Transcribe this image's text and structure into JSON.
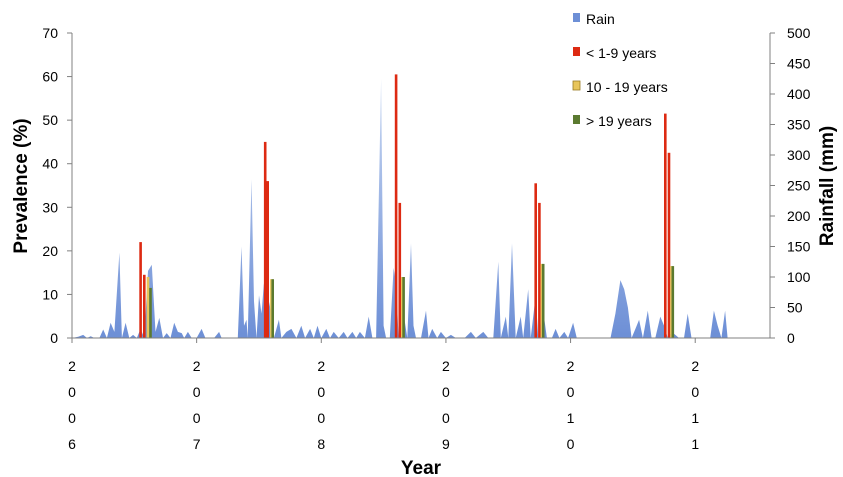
{
  "chart_data": {
    "type": "bar",
    "title": "",
    "xlabel": "Year",
    "ylabel_left": "Prevalence (%)",
    "ylabel_right": "Rainfall (mm)",
    "ylim_left": [
      0,
      70
    ],
    "ylim_right": [
      0,
      500
    ],
    "yticks_left": [
      0,
      10,
      20,
      30,
      40,
      50,
      60,
      70
    ],
    "yticks_right": [
      0,
      50,
      100,
      150,
      200,
      250,
      300,
      350,
      400,
      450,
      500
    ],
    "xlim": [
      2006.0,
      2011.6
    ],
    "year_labels": [
      {
        "year": 2006,
        "digits": [
          "2",
          "0",
          "0",
          "6"
        ]
      },
      {
        "year": 2007,
        "digits": [
          "2",
          "0",
          "0",
          "7"
        ]
      },
      {
        "year": 2008,
        "digits": [
          "2",
          "0",
          "0",
          "8"
        ]
      },
      {
        "year": 2009,
        "digits": [
          "2",
          "0",
          "0",
          "9"
        ]
      },
      {
        "year": 2010,
        "digits": [
          "2",
          "0",
          "1",
          "0"
        ]
      },
      {
        "year": 2011,
        "digits": [
          "2",
          "0",
          "1",
          "1"
        ]
      }
    ],
    "legend_position": "top-right",
    "series": [
      {
        "name": "Rain",
        "kind": "area",
        "axis": "right",
        "color": "#6d8fd6",
        "points": [
          [
            2006.0,
            0
          ],
          [
            2006.05,
            2
          ],
          [
            2006.09,
            5
          ],
          [
            2006.12,
            0
          ],
          [
            2006.15,
            3
          ],
          [
            2006.18,
            0
          ],
          [
            2006.22,
            0
          ],
          [
            2006.25,
            14
          ],
          [
            2006.28,
            0
          ],
          [
            2006.31,
            25
          ],
          [
            2006.34,
            10
          ],
          [
            2006.38,
            140
          ],
          [
            2006.4,
            0
          ],
          [
            2006.43,
            25
          ],
          [
            2006.46,
            0
          ],
          [
            2006.49,
            5
          ],
          [
            2006.52,
            0
          ],
          [
            2006.55,
            15
          ],
          [
            2006.58,
            0
          ],
          [
            2006.61,
            110
          ],
          [
            2006.64,
            120
          ],
          [
            2006.67,
            10
          ],
          [
            2006.7,
            33
          ],
          [
            2006.73,
            0
          ],
          [
            2006.76,
            8
          ],
          [
            2006.79,
            0
          ],
          [
            2006.82,
            25
          ],
          [
            2006.85,
            10
          ],
          [
            2006.88,
            8
          ],
          [
            2006.9,
            0
          ],
          [
            2006.93,
            10
          ],
          [
            2006.96,
            0
          ],
          [
            2007.0,
            0
          ],
          [
            2007.04,
            15
          ],
          [
            2007.07,
            0
          ],
          [
            2007.1,
            0
          ],
          [
            2007.14,
            0
          ],
          [
            2007.18,
            10
          ],
          [
            2007.2,
            0
          ],
          [
            2007.33,
            0
          ],
          [
            2007.36,
            150
          ],
          [
            2007.38,
            20
          ],
          [
            2007.4,
            30
          ],
          [
            2007.41,
            0
          ],
          [
            2007.44,
            260
          ],
          [
            2007.46,
            60
          ],
          [
            2007.48,
            0
          ],
          [
            2007.5,
            70
          ],
          [
            2007.52,
            40
          ],
          [
            2007.54,
            90
          ],
          [
            2007.56,
            0
          ],
          [
            2007.58,
            60
          ],
          [
            2007.6,
            40
          ],
          [
            2007.62,
            0
          ],
          [
            2007.66,
            30
          ],
          [
            2007.68,
            0
          ],
          [
            2007.72,
            10
          ],
          [
            2007.76,
            15
          ],
          [
            2007.8,
            0
          ],
          [
            2007.84,
            20
          ],
          [
            2007.87,
            0
          ],
          [
            2007.91,
            15
          ],
          [
            2007.94,
            0
          ],
          [
            2007.97,
            20
          ],
          [
            2008.0,
            0
          ],
          [
            2008.04,
            15
          ],
          [
            2008.07,
            0
          ],
          [
            2008.1,
            10
          ],
          [
            2008.14,
            0
          ],
          [
            2008.18,
            10
          ],
          [
            2008.21,
            0
          ],
          [
            2008.25,
            10
          ],
          [
            2008.28,
            0
          ],
          [
            2008.31,
            10
          ],
          [
            2008.35,
            0
          ],
          [
            2008.38,
            35
          ],
          [
            2008.41,
            0
          ],
          [
            2008.44,
            0
          ],
          [
            2008.48,
            425
          ],
          [
            2008.5,
            20
          ],
          [
            2008.52,
            0
          ],
          [
            2008.55,
            0
          ],
          [
            2008.58,
            115
          ],
          [
            2008.6,
            90
          ],
          [
            2008.62,
            0
          ],
          [
            2008.66,
            40
          ],
          [
            2008.69,
            0
          ],
          [
            2008.72,
            155
          ],
          [
            2008.74,
            20
          ],
          [
            2008.76,
            0
          ],
          [
            2008.8,
            0
          ],
          [
            2008.84,
            45
          ],
          [
            2008.86,
            0
          ],
          [
            2008.89,
            15
          ],
          [
            2008.93,
            0
          ],
          [
            2008.96,
            10
          ],
          [
            2009.0,
            0
          ],
          [
            2009.04,
            5
          ],
          [
            2009.08,
            0
          ],
          [
            2009.15,
            0
          ],
          [
            2009.2,
            10
          ],
          [
            2009.24,
            0
          ],
          [
            2009.3,
            10
          ],
          [
            2009.34,
            0
          ],
          [
            2009.38,
            0
          ],
          [
            2009.42,
            125
          ],
          [
            2009.44,
            0
          ],
          [
            2009.48,
            35
          ],
          [
            2009.5,
            0
          ],
          [
            2009.53,
            155
          ],
          [
            2009.56,
            0
          ],
          [
            2009.6,
            35
          ],
          [
            2009.62,
            0
          ],
          [
            2009.66,
            80
          ],
          [
            2009.68,
            0
          ],
          [
            2009.72,
            70
          ],
          [
            2009.74,
            0
          ],
          [
            2009.78,
            45
          ],
          [
            2009.81,
            0
          ],
          [
            2009.85,
            0
          ],
          [
            2009.88,
            15
          ],
          [
            2009.91,
            0
          ],
          [
            2009.95,
            10
          ],
          [
            2009.98,
            0
          ],
          [
            2010.02,
            25
          ],
          [
            2010.05,
            0
          ],
          [
            2010.1,
            0
          ],
          [
            2010.15,
            0
          ],
          [
            2010.2,
            0
          ],
          [
            2010.28,
            0
          ],
          [
            2010.32,
            0
          ],
          [
            2010.36,
            40
          ],
          [
            2010.4,
            95
          ],
          [
            2010.43,
            80
          ],
          [
            2010.46,
            50
          ],
          [
            2010.49,
            0
          ],
          [
            2010.52,
            15
          ],
          [
            2010.55,
            30
          ],
          [
            2010.58,
            0
          ],
          [
            2010.62,
            45
          ],
          [
            2010.65,
            0
          ],
          [
            2010.68,
            0
          ],
          [
            2010.72,
            35
          ],
          [
            2010.75,
            20
          ],
          [
            2010.78,
            0
          ],
          [
            2010.81,
            10
          ],
          [
            2010.84,
            5
          ],
          [
            2010.87,
            0
          ],
          [
            2010.91,
            0
          ],
          [
            2010.94,
            40
          ],
          [
            2010.97,
            0
          ],
          [
            2011.0,
            0
          ],
          [
            2011.04,
            0
          ],
          [
            2011.08,
            0
          ],
          [
            2011.12,
            0
          ],
          [
            2011.15,
            45
          ],
          [
            2011.18,
            20
          ],
          [
            2011.21,
            0
          ],
          [
            2011.24,
            45
          ],
          [
            2011.26,
            0
          ],
          [
            2011.3,
            0
          ]
        ]
      },
      {
        "name": "< 1-9 years",
        "kind": "bar",
        "axis": "left",
        "color": "#dd2a12",
        "points": [
          [
            2006.55,
            22
          ],
          [
            2006.58,
            14.5
          ],
          [
            2007.55,
            45
          ],
          [
            2007.57,
            36
          ],
          [
            2008.6,
            60.5
          ],
          [
            2008.63,
            31
          ],
          [
            2009.72,
            35.5
          ],
          [
            2009.75,
            31
          ],
          [
            2010.76,
            51.5
          ],
          [
            2010.79,
            42.5
          ]
        ]
      },
      {
        "name": "10 - 19 years",
        "kind": "bar",
        "axis": "left",
        "color": "#e8c55a",
        "points": [
          [
            2006.61,
            14
          ],
          [
            2007.6,
            13.5
          ],
          [
            2008.65,
            14
          ],
          [
            2009.77,
            17
          ],
          [
            2010.81,
            16.5
          ]
        ]
      },
      {
        "name": "> 19 years",
        "kind": "bar",
        "axis": "left",
        "color": "#5b7a30",
        "points": [
          [
            2006.63,
            11.5
          ],
          [
            2007.61,
            13.5
          ],
          [
            2008.66,
            14
          ],
          [
            2009.78,
            17
          ],
          [
            2010.82,
            16.5
          ]
        ]
      }
    ]
  }
}
